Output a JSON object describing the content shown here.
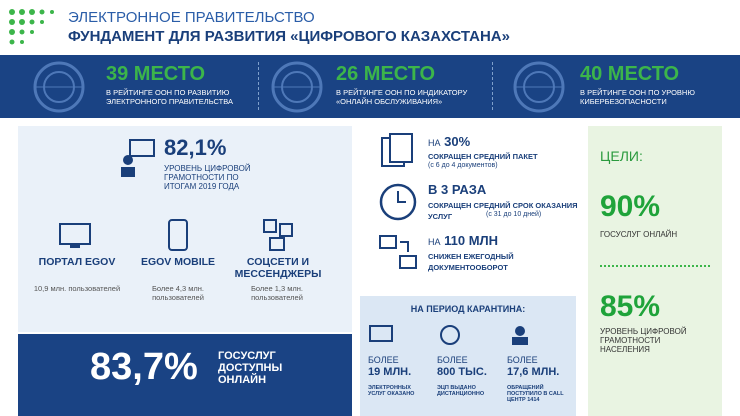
{
  "header": {
    "title": "ЭЛЕКТРОННОЕ ПРАВИТЕЛЬСТВО",
    "subtitle": "ФУНДАМЕНТ ДЛЯ РАЗВИТИЯ «ЦИФРОВОГО КАЗАХСТАНА»"
  },
  "rankings": [
    {
      "place": "39 МЕСТО",
      "text": "В РЕЙТИНГЕ ООН ПО РАЗВИТИЮ ЭЛЕКТРОННОГО ПРАВИТЕЛЬСТВА"
    },
    {
      "place": "26 МЕСТО",
      "text": "В РЕЙТИНГЕ ООН ПО ИНДИКАТОРУ «ОНЛАЙН ОБСЛУЖИВАНИЯ»"
    },
    {
      "place": "40 МЕСТО",
      "text": "В РЕЙТИНГЕ ООН ПО УРОВНЮ КИБЕРБЕЗОПАСНОСТИ"
    }
  ],
  "literacy": {
    "value": "82,1%",
    "text": "УРОВЕНЬ ЦИФРОВОЙ ГРАМОТНОСТИ ПО ИТОГАМ 2019 ГОДА"
  },
  "channels": [
    {
      "name": "ПОРТАЛ EGOV",
      "users": "10,9 млн. пользователей"
    },
    {
      "name": "EGOV MOBILE",
      "users": "Более 4,3 млн. пользователей"
    },
    {
      "name": "СОЦСЕТИ И МЕССЕНДЖЕРЫ",
      "users": "Более 1,3 млн. пользователей"
    }
  ],
  "online": {
    "value": "83,7%",
    "text": "ГОСУСЛУГ ДОСТУПНЫ ОНЛАЙН"
  },
  "facts": [
    {
      "prefix": "НА",
      "value": "30%",
      "text": "СОКРАЩЕН СРЕДНИЙ ПАКЕТ",
      "note": "(с 6 до 4 документов)"
    },
    {
      "value": "В 3 РАЗА",
      "text": "СОКРАЩЕН СРЕДНИЙ СРОК ОКАЗАНИЯ УСЛУГ",
      "note": "(с 31 до 10 дней)"
    },
    {
      "prefix": "НА",
      "value": "110 МЛН",
      "text": "СНИЖЕН ЕЖЕГОДНЫЙ ДОКУМЕНТООБОРОТ"
    }
  ],
  "quarantine": {
    "title": "НА ПЕРИОД КАРАНТИНА:",
    "items": [
      {
        "prefix": "БОЛЕЕ",
        "value": "19 МЛН.",
        "text": "ЭЛЕКТРОННЫХ УСЛУГ ОКАЗАНО"
      },
      {
        "prefix": "БОЛЕЕ",
        "value": "800 ТЫС.",
        "text": "ЭЦП ВЫДАНО ДИСТАНЦИОННО"
      },
      {
        "prefix": "БОЛЕЕ",
        "value": "17,6 МЛН.",
        "text": "ОБРАЩЕНИЙ ПОСТУПИЛО В CALL ЦЕНТР 1414"
      }
    ]
  },
  "goals": {
    "title": "ЦЕЛИ:",
    "items": [
      {
        "value": "90%",
        "text": "ГОСУСЛУГ ОНЛАЙН"
      },
      {
        "value": "85%",
        "text": "УРОВЕНЬ ЦИФРОВОЙ ГРАМОТНОСТИ НАСЕЛЕНИЯ"
      }
    ]
  }
}
